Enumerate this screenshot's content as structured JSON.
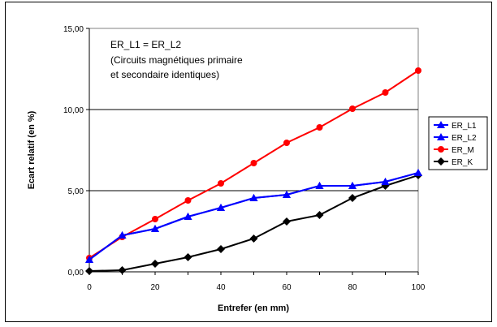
{
  "chart_data": {
    "type": "line",
    "title": "",
    "xlabel": "Entrefer (en mm)",
    "ylabel": "Ecart relatif (en %)",
    "xlim": [
      0,
      100
    ],
    "ylim": [
      0,
      15
    ],
    "x_ticks": [
      "0",
      "20",
      "40",
      "60",
      "80",
      "100"
    ],
    "y_ticks": [
      "0,00",
      "5,00",
      "10,00",
      "15,00"
    ],
    "grid": "horizontal",
    "legend_position": "right",
    "annotation": [
      "ER_L1 = ER_L2",
      "(Circuits magnétiques primaire",
      "et secondaire identiques)"
    ],
    "x": [
      0,
      10,
      20,
      30,
      40,
      50,
      60,
      70,
      80,
      90,
      100
    ],
    "series": [
      {
        "name": "ER_L1",
        "color": "#0000ff",
        "marker": "triangle",
        "values": [
          0.75,
          2.25,
          2.65,
          3.4,
          3.95,
          4.55,
          4.75,
          5.3,
          5.3,
          5.55,
          6.1
        ]
      },
      {
        "name": "ER_L2",
        "color": "#0000ff",
        "marker": "triangle",
        "values": [
          0.75,
          2.25,
          2.65,
          3.4,
          3.95,
          4.55,
          4.75,
          5.3,
          5.3,
          5.55,
          6.1
        ]
      },
      {
        "name": "ER_M",
        "color": "#ff0000",
        "marker": "circle",
        "values": [
          0.85,
          2.15,
          3.25,
          4.4,
          5.45,
          6.7,
          7.95,
          8.9,
          10.05,
          11.05,
          12.4
        ]
      },
      {
        "name": "ER_K",
        "color": "#000000",
        "marker": "diamond",
        "values": [
          0.05,
          0.1,
          0.5,
          0.9,
          1.4,
          2.05,
          3.1,
          3.5,
          4.55,
          5.3,
          5.95
        ]
      }
    ]
  }
}
